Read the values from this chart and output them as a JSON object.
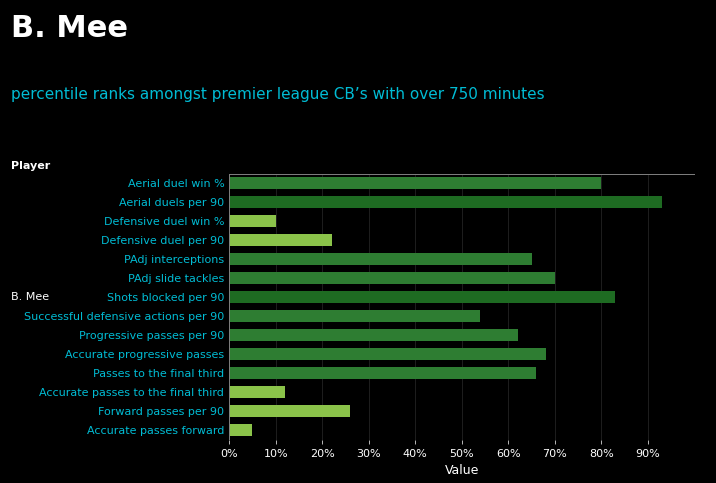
{
  "title": "B. Mee",
  "subtitle": "percentile ranks amongst premier league CB’s with over 750 minutes",
  "player_label": "Player",
  "player_name": "B. Mee",
  "xlabel": "Value",
  "categories": [
    "Aerial duel win %",
    "Aerial duels per 90",
    "Defensive duel win %",
    "Defensive duel per 90",
    "PAdj interceptions",
    "PAdj slide tackles",
    "Shots blocked per 90",
    "Successful defensive actions per 90",
    "Progressive passes per 90",
    "Accurate progressive passes",
    "Passes to the final third",
    "Accurate passes to the final third",
    "Forward passes per 90",
    "Accurate passes forward"
  ],
  "values": [
    80,
    93,
    10,
    22,
    65,
    70,
    83,
    54,
    62,
    68,
    66,
    12,
    26,
    5
  ],
  "bar_colors": [
    "#2e7d32",
    "#1e6b22",
    "#8bc34a",
    "#8bc34a",
    "#2e7d32",
    "#2e7d32",
    "#1e6b22",
    "#2e7d32",
    "#2e7d32",
    "#2e7d32",
    "#2e7d32",
    "#8bc34a",
    "#8bc34a",
    "#8bc34a"
  ],
  "background_color": "#000000",
  "text_color": "#ffffff",
  "label_color": "#00bcd4",
  "title_fontsize": 22,
  "subtitle_fontsize": 11,
  "tick_label_fontsize": 8,
  "xlabel_fontsize": 9,
  "xlim": [
    0,
    100
  ],
  "xticks": [
    0,
    10,
    20,
    30,
    40,
    50,
    60,
    70,
    80,
    90
  ],
  "xtick_labels": [
    "0%",
    "10%",
    "20%",
    "30%",
    "40%",
    "50%",
    "60%",
    "70%",
    "80%",
    "90%"
  ],
  "grid_color": "#2a2a2a"
}
